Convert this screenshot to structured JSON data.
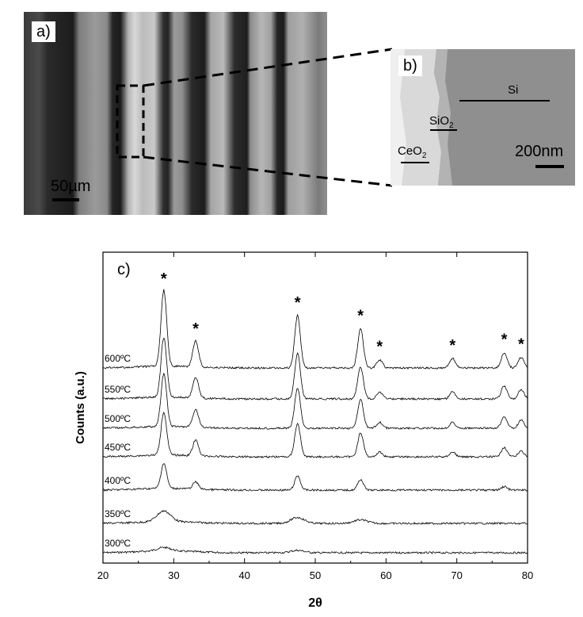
{
  "panel_a": {
    "label": "a)",
    "scale_label": "50",
    "scale_unit": "µm"
  },
  "panel_b": {
    "label": "b)",
    "scale_label": "200nm",
    "layers": {
      "si": "Si",
      "sio2_main": "SiO",
      "sio2_sub": "2",
      "ceo2_main": "CeO",
      "ceo2_sub": "2"
    }
  },
  "chart_data": {
    "type": "line",
    "panel_label": "c)",
    "xlabel": "2θ",
    "ylabel": "Counts (a.u.)",
    "xlim": [
      20,
      80
    ],
    "xticks": [
      "20",
      "30",
      "40",
      "50",
      "60",
      "70",
      "80"
    ],
    "y_ticks": "none",
    "grid": false,
    "series": [
      {
        "name": "300ºC",
        "peaks": [
          [
            28.6,
            0.3
          ],
          [
            47.5,
            0.2
          ]
        ]
      },
      {
        "name": "350ºC",
        "peaks": [
          [
            28.6,
            0.9
          ],
          [
            47.5,
            0.5
          ],
          [
            56.4,
            0.3
          ]
        ]
      },
      {
        "name": "400ºC",
        "peaks": [
          [
            28.6,
            2.1
          ],
          [
            33.1,
            0.6
          ],
          [
            47.5,
            1.2
          ],
          [
            56.4,
            0.9
          ],
          [
            76.7,
            0.3
          ]
        ]
      },
      {
        "name": "450ºC",
        "peaks": [
          [
            28.6,
            3.6
          ],
          [
            33.1,
            1.3
          ],
          [
            47.5,
            2.8
          ],
          [
            56.4,
            2.0
          ],
          [
            59.1,
            0.4
          ],
          [
            69.4,
            0.4
          ],
          [
            76.7,
            0.8
          ],
          [
            79.1,
            0.5
          ]
        ]
      },
      {
        "name": "500ºC",
        "peaks": [
          [
            28.6,
            4.4
          ],
          [
            33.1,
            1.5
          ],
          [
            47.5,
            3.4
          ],
          [
            56.4,
            2.4
          ],
          [
            59.1,
            0.5
          ],
          [
            69.4,
            0.5
          ],
          [
            76.7,
            1.0
          ],
          [
            79.1,
            0.7
          ]
        ]
      },
      {
        "name": "550ºC",
        "peaks": [
          [
            28.6,
            5.0
          ],
          [
            33.1,
            1.7
          ],
          [
            47.5,
            3.8
          ],
          [
            56.4,
            2.7
          ],
          [
            59.1,
            0.6
          ],
          [
            69.4,
            0.6
          ],
          [
            76.7,
            1.1
          ],
          [
            79.1,
            0.8
          ]
        ]
      },
      {
        "name": "600ºC",
        "peaks": [
          [
            28.6,
            6.4
          ],
          [
            33.1,
            2.2
          ],
          [
            47.5,
            4.4
          ],
          [
            56.4,
            3.3
          ],
          [
            59.1,
            0.7
          ],
          [
            69.4,
            0.8
          ],
          [
            76.7,
            1.3
          ],
          [
            79.1,
            0.9
          ]
        ]
      }
    ],
    "annotations": [
      {
        "text": "*",
        "x": 28.6
      },
      {
        "text": "*",
        "x": 33.1
      },
      {
        "text": "*",
        "x": 47.5
      },
      {
        "text": "*",
        "x": 56.4
      },
      {
        "text": "*",
        "x": 59.1
      },
      {
        "text": "*",
        "x": 69.4
      },
      {
        "text": "*",
        "x": 76.7
      },
      {
        "text": "*",
        "x": 79.1
      }
    ]
  }
}
